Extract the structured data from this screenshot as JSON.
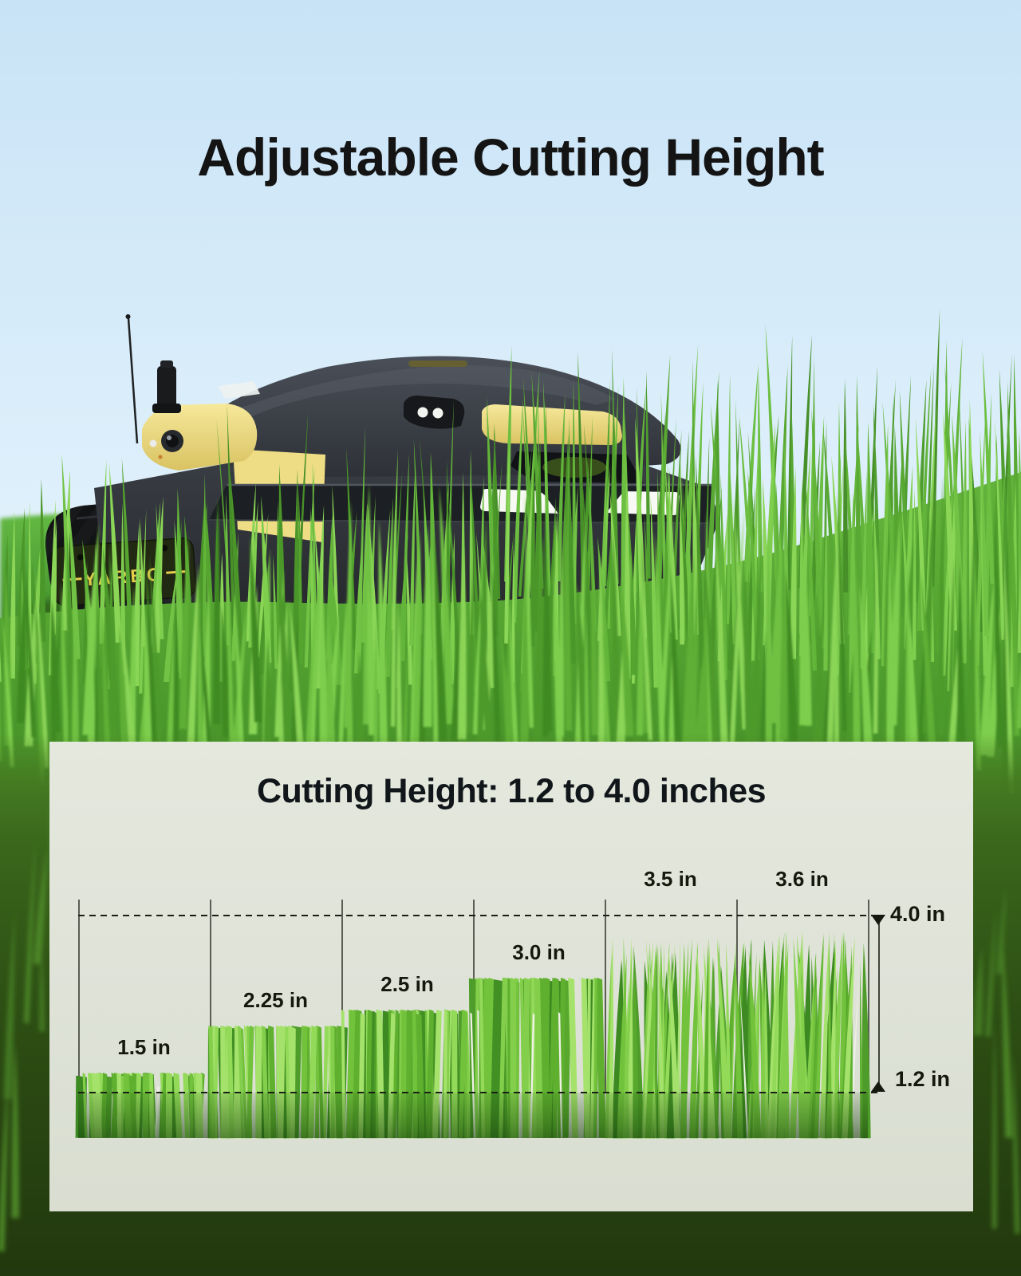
{
  "page": {
    "title": "Adjustable Cutting Height"
  },
  "product": {
    "brand": "YARBO"
  },
  "panel": {
    "title": "Cutting Height: 1.2 to 4.0 inches"
  },
  "chart_data": {
    "type": "bar",
    "title": "Cutting Height: 1.2 to 4.0 inches",
    "categories": [
      "1.5 in",
      "2.25 in",
      "2.5 in",
      "3.0 in",
      "3.5 in",
      "3.6 in"
    ],
    "values": [
      1.5,
      2.25,
      2.5,
      3.0,
      3.5,
      3.6
    ],
    "unit": "in",
    "xlabel": "",
    "ylabel": "",
    "ylim": [
      1.2,
      4.0
    ],
    "range_labels": {
      "max": "4.0 in",
      "min": "1.2 in"
    },
    "uncut_bars": [
      "3.5 in",
      "3.6 in"
    ],
    "legend": "none",
    "grid": "dashed reference lines at 1.2 in and 4.0 in"
  },
  "colors": {
    "brand_yellow": "#ecd97b",
    "mower_body": "#33373d",
    "grass_green": "#5fae36",
    "sky_blue": "#cfe7f8",
    "panel_bg": "#dfe3d8",
    "text_dark": "#141414"
  }
}
